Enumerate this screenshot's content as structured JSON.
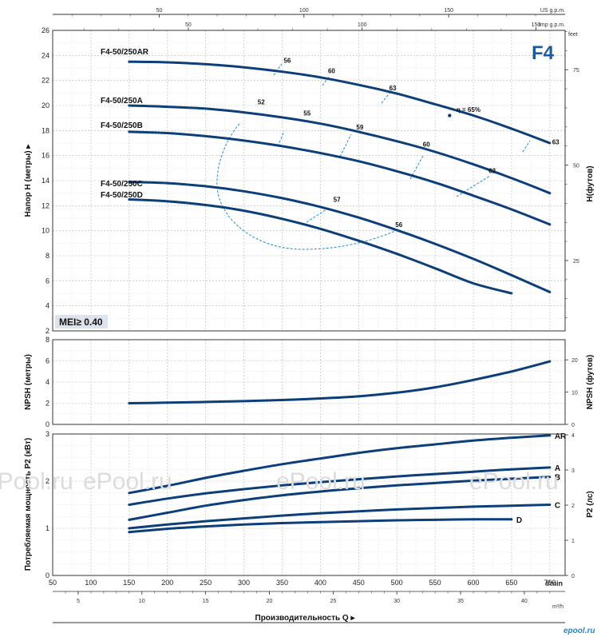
{
  "badge": "F4",
  "mei": "MEI≥ 0.40",
  "watermarks": [
    "ePool.ru",
    "ePool.ru",
    "ePool.ru",
    "ePool.ru"
  ],
  "corner_logo": "epool.ru",
  "colors": {
    "curve": "#0c3f79",
    "iso": "#1a8fd0",
    "badge": "#1c5a9e",
    "mei_bg": "#dde3ea"
  },
  "chart_data": [
    {
      "type": "line",
      "id": "head",
      "ylabel": "Напор H (метры)",
      "ylabel_right": "H(футов)",
      "xlim": [
        50,
        720
      ],
      "ylim": [
        2,
        26
      ],
      "y_ticks": [
        2,
        4,
        6,
        8,
        10,
        12,
        14,
        16,
        18,
        20,
        22,
        24,
        26
      ],
      "y2_ticks": [
        25,
        50,
        75
      ],
      "y2_tick_labels": [
        "25",
        "50",
        "75"
      ],
      "y2_unit": "feet",
      "top_axis_us": {
        "unit": "US g.p.m.",
        "ticks": [
          "50",
          "100",
          "150"
        ],
        "values_lmin": [
          189.3,
          378.5,
          567.8
        ]
      },
      "top_axis_imp": {
        "unit": "Imp g.p.m.",
        "ticks": [
          "50",
          "100",
          "150"
        ],
        "values_lmin": [
          227.3,
          454.6,
          681.9
        ]
      },
      "series": [
        {
          "name": "F4-50/250AR",
          "x": [
            150,
            200,
            250,
            300,
            350,
            400,
            450,
            500,
            550,
            600,
            650,
            700
          ],
          "y": [
            23.5,
            23.45,
            23.3,
            23.05,
            22.7,
            22.25,
            21.65,
            20.95,
            20.1,
            19.2,
            18.15,
            17.0
          ]
        },
        {
          "name": "F4-50/250A",
          "x": [
            150,
            200,
            250,
            300,
            350,
            400,
            450,
            500,
            550,
            600,
            650,
            700
          ],
          "y": [
            20.0,
            19.9,
            19.75,
            19.45,
            19.05,
            18.55,
            17.9,
            17.15,
            16.3,
            15.3,
            14.2,
            13.0
          ]
        },
        {
          "name": "F4-50/250B",
          "x": [
            150,
            200,
            250,
            300,
            350,
            400,
            450,
            500,
            550,
            600,
            650,
            700
          ],
          "y": [
            17.9,
            17.8,
            17.55,
            17.2,
            16.75,
            16.2,
            15.55,
            14.75,
            13.85,
            12.8,
            11.7,
            10.5
          ]
        },
        {
          "name": "F4-50/250C",
          "x": [
            150,
            200,
            250,
            300,
            350,
            400,
            450,
            500,
            550,
            600,
            650,
            700
          ],
          "y": [
            13.9,
            13.8,
            13.55,
            13.15,
            12.6,
            11.9,
            11.05,
            10.05,
            8.95,
            7.75,
            6.45,
            5.1
          ]
        },
        {
          "name": "F4-50/250D",
          "x": [
            150,
            200,
            250,
            300,
            350,
            400,
            450,
            500,
            550,
            600,
            650
          ],
          "y": [
            12.5,
            12.35,
            12.05,
            11.6,
            10.95,
            10.15,
            9.2,
            8.15,
            7.0,
            5.8,
            5.0
          ]
        }
      ],
      "efficiency_labels": [
        {
          "text": "56",
          "x": 352,
          "y": 23.4
        },
        {
          "text": "60",
          "x": 410,
          "y": 22.6
        },
        {
          "text": "63",
          "x": 490,
          "y": 21.2
        },
        {
          "text": "η = 65%",
          "x": 578,
          "y": 19.5
        },
        {
          "text": "63",
          "x": 703,
          "y": 16.9
        },
        {
          "text": "52",
          "x": 318,
          "y": 20.1
        },
        {
          "text": "55",
          "x": 378,
          "y": 19.2
        },
        {
          "text": "59",
          "x": 447,
          "y": 18.1
        },
        {
          "text": "60",
          "x": 534,
          "y": 16.7
        },
        {
          "text": "62",
          "x": 620,
          "y": 14.6
        },
        {
          "text": "57",
          "x": 417,
          "y": 12.3
        },
        {
          "text": "56",
          "x": 498,
          "y": 10.3
        }
      ]
    },
    {
      "type": "line",
      "id": "npsh",
      "ylabel": "NPSH (метры)",
      "ylabel_right": "NPSH (футов)",
      "ylim": [
        0,
        8
      ],
      "y_ticks": [
        0,
        2,
        4,
        6,
        8
      ],
      "y2_ticks": [
        0,
        10,
        20
      ],
      "series": [
        {
          "name": "NPSH",
          "x": [
            150,
            200,
            250,
            300,
            350,
            400,
            450,
            500,
            550,
            600,
            650,
            700
          ],
          "y": [
            2.0,
            2.05,
            2.12,
            2.2,
            2.3,
            2.45,
            2.65,
            3.0,
            3.5,
            4.2,
            5.0,
            5.95
          ]
        }
      ]
    },
    {
      "type": "line",
      "id": "power",
      "ylabel": "Потребляемая мощность P2 (кВт)",
      "ylabel_right": "P2 (лс)",
      "xlabel": "Производительность Q",
      "x_unit": "l/min",
      "x2_unit": "m³/h",
      "ylim": [
        0,
        3
      ],
      "y_ticks": [
        0,
        1,
        2,
        3
      ],
      "y2_ticks": [
        0,
        1,
        2,
        3,
        4
      ],
      "x_ticks": [
        50,
        100,
        150,
        200,
        250,
        300,
        350,
        400,
        450,
        500,
        550,
        600,
        650,
        700
      ],
      "x2_ticks": [
        5,
        10,
        15,
        20,
        25,
        30,
        35,
        40
      ],
      "series": [
        {
          "name": "AR",
          "x": [
            150,
            200,
            250,
            300,
            350,
            400,
            450,
            500,
            550,
            600,
            650,
            700
          ],
          "y": [
            1.75,
            1.9,
            2.07,
            2.22,
            2.36,
            2.48,
            2.6,
            2.7,
            2.78,
            2.86,
            2.92,
            2.97
          ]
        },
        {
          "name": "A",
          "x": [
            150,
            200,
            250,
            300,
            350,
            400,
            450,
            500,
            550,
            600,
            650,
            700
          ],
          "y": [
            1.5,
            1.63,
            1.74,
            1.83,
            1.91,
            1.98,
            2.04,
            2.1,
            2.15,
            2.2,
            2.25,
            2.29
          ]
        },
        {
          "name": "B",
          "x": [
            150,
            200,
            250,
            300,
            350,
            400,
            450,
            500,
            550,
            600,
            650,
            700
          ],
          "y": [
            1.18,
            1.33,
            1.48,
            1.6,
            1.7,
            1.78,
            1.85,
            1.91,
            1.96,
            2.01,
            2.05,
            2.09
          ]
        },
        {
          "name": "C",
          "x": [
            150,
            200,
            250,
            300,
            350,
            400,
            450,
            500,
            550,
            600,
            650,
            700
          ],
          "y": [
            1.0,
            1.08,
            1.15,
            1.21,
            1.27,
            1.32,
            1.36,
            1.4,
            1.43,
            1.46,
            1.48,
            1.5
          ]
        },
        {
          "name": "D",
          "x": [
            150,
            200,
            250,
            300,
            350,
            400,
            450,
            500,
            550,
            600,
            650
          ],
          "y": [
            0.92,
            0.99,
            1.04,
            1.08,
            1.11,
            1.13,
            1.15,
            1.17,
            1.18,
            1.19,
            1.19
          ]
        }
      ]
    }
  ]
}
